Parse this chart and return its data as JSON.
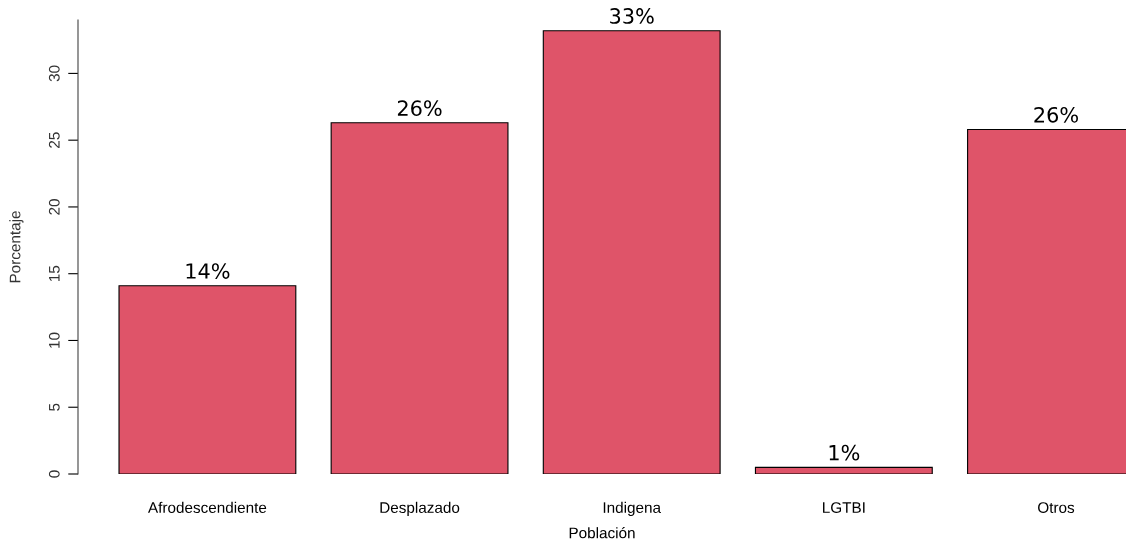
{
  "chart_data": {
    "type": "bar",
    "xlabel": "Población",
    "ylabel": "Porcentaje",
    "categories": [
      "Afrodescendiente",
      "Desplazado",
      "Indigena",
      "LGTBI",
      "Otros"
    ],
    "values": [
      14.1,
      26.3,
      33.2,
      0.5,
      25.8
    ],
    "value_labels": [
      "14%",
      "26%",
      "33%",
      "1%",
      "26%"
    ],
    "color": "#df5469",
    "ylim": [
      0,
      34
    ],
    "yticks": [
      0,
      5,
      10,
      15,
      20,
      25,
      30
    ],
    "grid": false
  }
}
